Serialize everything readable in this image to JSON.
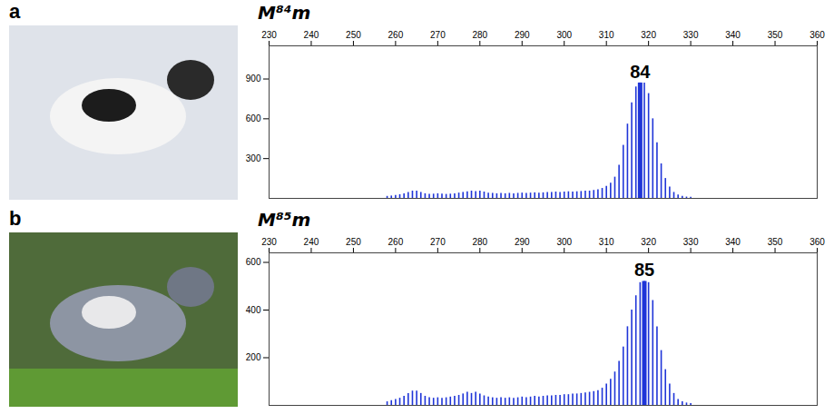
{
  "chart_data": [
    {
      "panel": "a",
      "type": "stem",
      "title": "M⁸⁴m",
      "color": "#1f35d8",
      "x": [
        258,
        259,
        260,
        261,
        262,
        263,
        264,
        265,
        266,
        267,
        268,
        269,
        270,
        271,
        272,
        273,
        274,
        275,
        276,
        277,
        278,
        279,
        280,
        281,
        282,
        283,
        284,
        285,
        286,
        287,
        288,
        289,
        290,
        291,
        292,
        293,
        294,
        295,
        296,
        297,
        298,
        299,
        300,
        301,
        302,
        303,
        304,
        305,
        306,
        307,
        308,
        309,
        310,
        311,
        312,
        313,
        314,
        315,
        316,
        317,
        318,
        319,
        320,
        321,
        322,
        323,
        324,
        325,
        326,
        327,
        328,
        329,
        330
      ],
      "values": [
        15,
        18,
        22,
        28,
        35,
        45,
        55,
        55,
        45,
        35,
        30,
        32,
        35,
        32,
        30,
        32,
        35,
        40,
        45,
        50,
        55,
        52,
        55,
        48,
        40,
        38,
        35,
        38,
        35,
        38,
        35,
        38,
        40,
        38,
        40,
        42,
        40,
        42,
        45,
        45,
        48,
        45,
        48,
        50,
        48,
        50,
        52,
        55,
        55,
        60,
        65,
        75,
        90,
        115,
        160,
        250,
        400,
        560,
        720,
        840,
        870,
        870,
        790,
        600,
        420,
        260,
        150,
        85,
        45,
        25,
        15,
        10,
        8
      ],
      "annotation": {
        "text": "84",
        "x": 318
      },
      "xlim": [
        230,
        360
      ],
      "xticks": [
        230,
        240,
        250,
        260,
        270,
        280,
        290,
        300,
        310,
        320,
        330,
        340,
        350,
        360
      ],
      "ylim": [
        0,
        1150
      ],
      "yticks": [
        300,
        600,
        900
      ]
    },
    {
      "panel": "b",
      "type": "stem",
      "title": "M⁸⁵m",
      "color": "#1f35d8",
      "x": [
        258,
        259,
        260,
        261,
        262,
        263,
        264,
        265,
        266,
        267,
        268,
        269,
        270,
        271,
        272,
        273,
        274,
        275,
        276,
        277,
        278,
        279,
        280,
        281,
        282,
        283,
        284,
        285,
        286,
        287,
        288,
        289,
        290,
        291,
        292,
        293,
        294,
        295,
        296,
        297,
        298,
        299,
        300,
        301,
        302,
        303,
        304,
        305,
        306,
        307,
        308,
        309,
        310,
        311,
        312,
        313,
        314,
        315,
        316,
        317,
        318,
        319,
        320,
        321,
        322,
        323,
        324,
        325,
        326,
        327,
        328,
        329,
        330
      ],
      "values": [
        15,
        20,
        25,
        30,
        38,
        50,
        60,
        60,
        50,
        38,
        32,
        30,
        32,
        30,
        32,
        35,
        38,
        42,
        48,
        55,
        50,
        55,
        48,
        40,
        35,
        32,
        30,
        32,
        30,
        32,
        30,
        32,
        35,
        32,
        35,
        38,
        35,
        38,
        40,
        40,
        42,
        42,
        45,
        45,
        48,
        48,
        50,
        52,
        55,
        58,
        62,
        72,
        90,
        110,
        140,
        185,
        245,
        330,
        400,
        460,
        515,
        520,
        515,
        440,
        330,
        230,
        150,
        90,
        50,
        25,
        15,
        10,
        8
      ],
      "annotation": {
        "text": "85",
        "x": 319
      },
      "xlim": [
        230,
        360
      ],
      "xticks": [
        230,
        240,
        250,
        260,
        270,
        280,
        290,
        300,
        310,
        320,
        330,
        340,
        350,
        360
      ],
      "ylim": [
        0,
        640
      ],
      "yticks": [
        200,
        400,
        600
      ]
    }
  ]
}
